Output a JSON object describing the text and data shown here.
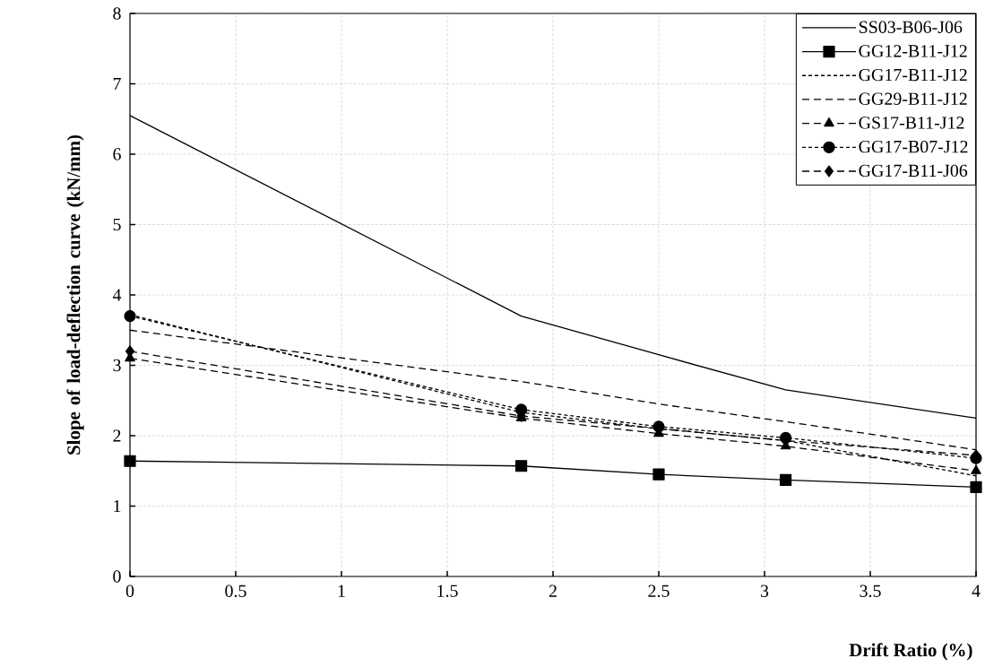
{
  "chart_data": {
    "type": "line",
    "xlabel": "Drift Ratio (%)",
    "ylabel": "Slope of load-deflection curve (kN/mm)",
    "x": [
      0,
      1.85,
      2.5,
      3.1,
      4
    ],
    "series": [
      {
        "name": "SS03-B06-J06",
        "color": "#000000",
        "marker": "none",
        "line_style": "solid",
        "values": [
          6.55,
          3.7,
          3.15,
          2.65,
          2.25
        ]
      },
      {
        "name": "GG12-B11-J12",
        "color": "#000000",
        "marker": "square",
        "line_style": "solid",
        "values": [
          1.64,
          1.57,
          1.45,
          1.37,
          1.27
        ]
      },
      {
        "name": "GG17-B11-J12",
        "color": "#000000",
        "marker": "none",
        "line_style": "dotted",
        "values": [
          3.72,
          2.33,
          2.1,
          1.93,
          1.43
        ]
      },
      {
        "name": "GG29-B11-J12",
        "color": "#000000",
        "marker": "none",
        "line_style": "dashed",
        "values": [
          3.5,
          2.77,
          2.45,
          2.2,
          1.8
        ]
      },
      {
        "name": "GS17-B11-J12",
        "color": "#000000",
        "marker": "triangle",
        "line_style": "dashed",
        "values": [
          3.1,
          2.25,
          2.03,
          1.85,
          1.5
        ]
      },
      {
        "name": "GG17-B07-J12",
        "color": "#000000",
        "marker": "circle",
        "line_style": "dotted",
        "values": [
          3.7,
          2.37,
          2.13,
          1.97,
          1.68
        ]
      },
      {
        "name": "GG17-B11-J06",
        "color": "#000000",
        "marker": "diamond",
        "line_style": "dashed",
        "values": [
          3.2,
          2.28,
          2.1,
          1.93,
          1.72
        ]
      }
    ],
    "xlim": [
      0,
      4
    ],
    "xticks": [
      0,
      0.5,
      1,
      1.5,
      2,
      2.5,
      3,
      3.5,
      4
    ],
    "ylim": [
      0,
      8
    ],
    "yticks": [
      0,
      1,
      2,
      3,
      4,
      5,
      6,
      7,
      8
    ],
    "grid": true,
    "legend": "top right"
  }
}
